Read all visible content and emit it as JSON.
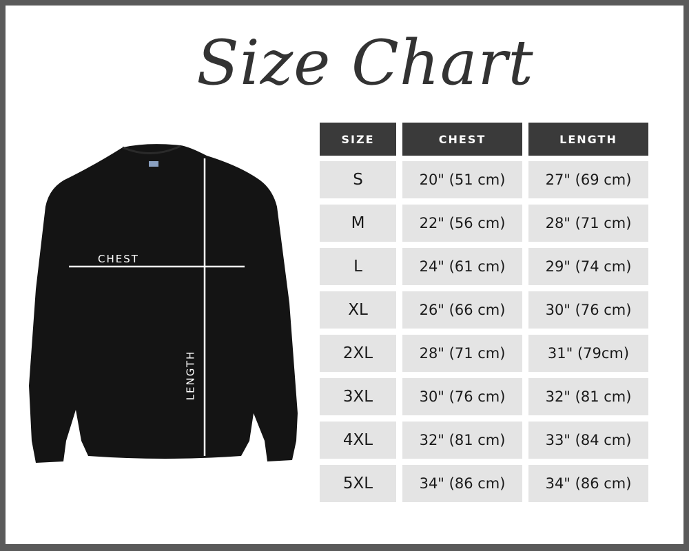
{
  "title": "Size Chart",
  "diagram": {
    "chest_label": "CHEST",
    "length_label": "LENGTH",
    "garment": "sweatshirt"
  },
  "colors": {
    "header_bg": "#3a3a3a",
    "cell_bg": "#e4e4e4",
    "frame": "#5a5a5a"
  },
  "table": {
    "headers": [
      "SIZE",
      "CHEST",
      "LENGTH"
    ],
    "rows": [
      [
        "S",
        "20\" (51 cm)",
        "27\" (69 cm)"
      ],
      [
        "M",
        "22\" (56 cm)",
        "28\" (71 cm)"
      ],
      [
        "L",
        "24\" (61 cm)",
        "29\" (74 cm)"
      ],
      [
        "XL",
        "26\" (66 cm)",
        "30\" (76 cm)"
      ],
      [
        "2XL",
        "28\" (71 cm)",
        "31\" (79cm)"
      ],
      [
        "3XL",
        "30\" (76 cm)",
        "32\" (81 cm)"
      ],
      [
        "4XL",
        "32\" (81 cm)",
        "33\" (84 cm)"
      ],
      [
        "5XL",
        "34\" (86 cm)",
        "34\" (86 cm)"
      ]
    ]
  }
}
